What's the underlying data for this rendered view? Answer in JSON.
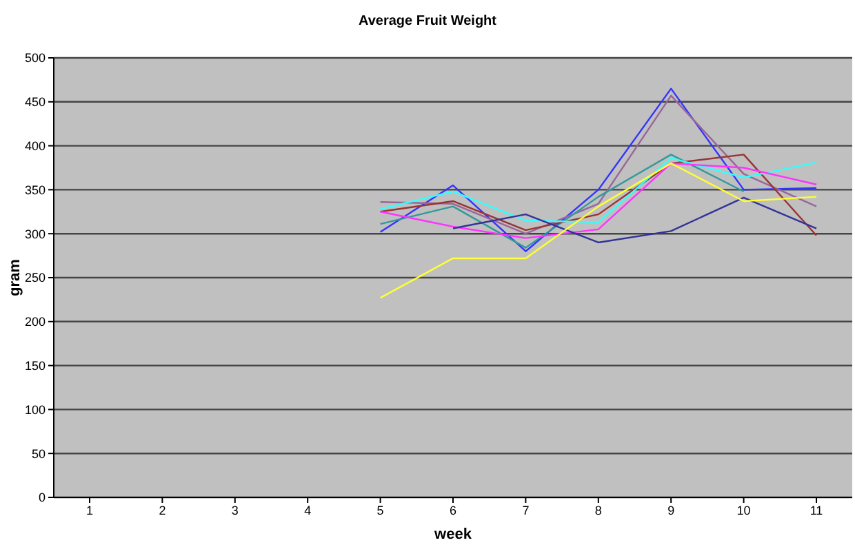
{
  "chart_data": {
    "type": "line",
    "title": "Average Fruit Weight",
    "xlabel": "week",
    "ylabel": "gram",
    "categories": [
      "1",
      "2",
      "3",
      "4",
      "5",
      "6",
      "7",
      "8",
      "9",
      "10",
      "11"
    ],
    "series": [
      {
        "color": "#3333ff",
        "values": [
          null,
          null,
          null,
          null,
          302,
          355,
          280,
          350,
          465,
          350,
          352
        ]
      },
      {
        "color": "#996699",
        "values": [
          null,
          null,
          null,
          null,
          336,
          334,
          300,
          334,
          457,
          368,
          331
        ]
      },
      {
        "color": "#339999",
        "values": [
          null,
          null,
          null,
          null,
          311,
          331,
          284,
          342,
          390,
          348,
          null
        ]
      },
      {
        "color": "#993333",
        "values": [
          null,
          null,
          null,
          null,
          325,
          337,
          304,
          322,
          380,
          390,
          298
        ]
      },
      {
        "color": "#33ffff",
        "values": [
          null,
          null,
          null,
          null,
          328,
          348,
          315,
          313,
          386,
          364,
          381
        ]
      },
      {
        "color": "#ff33ff",
        "values": [
          null,
          null,
          null,
          null,
          325,
          308,
          295,
          305,
          380,
          375,
          356
        ]
      },
      {
        "color": "#333399",
        "values": [
          null,
          null,
          null,
          null,
          null,
          306,
          322,
          290,
          303,
          341,
          306
        ]
      },
      {
        "color": "#ffff33",
        "values": [
          null,
          null,
          null,
          null,
          227,
          272,
          272,
          331,
          380,
          337,
          342
        ]
      }
    ],
    "ylim": [
      0,
      500
    ],
    "yticks": [
      0,
      50,
      100,
      150,
      200,
      250,
      300,
      350,
      400,
      450,
      500
    ],
    "grid": "y",
    "legend": false,
    "marker": "none",
    "line_style": "solid"
  }
}
